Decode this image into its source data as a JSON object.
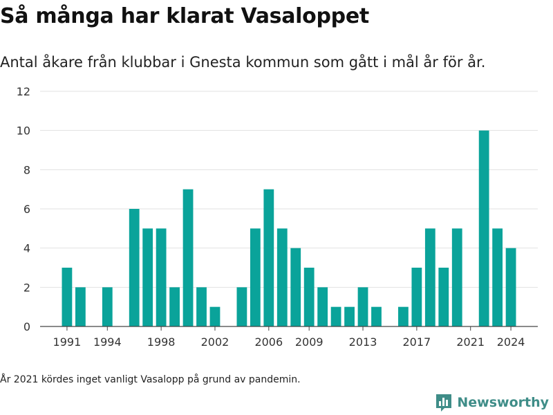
{
  "title": "Så många har klarat Vasaloppet",
  "subtitle": "Antal åkare från klubbar i Gnesta kommun som gått i mål år för år.",
  "footnote": "År 2021 kördes inget vanligt Vasalopp på grund av pandemin.",
  "brand": {
    "name": "Newsworthy",
    "icon": "bar-chart-logo-icon",
    "color": "#3f8d88"
  },
  "chart_data": {
    "type": "bar",
    "title": "",
    "xlabel": "",
    "ylabel": "",
    "ylim": [
      0,
      12
    ],
    "yticks": [
      0,
      2,
      4,
      6,
      8,
      10,
      12
    ],
    "xticks": [
      1991,
      1994,
      1998,
      2002,
      2006,
      2009,
      2013,
      2017,
      2021,
      2024
    ],
    "xlim": [
      1989,
      2026
    ],
    "grid": true,
    "bar_color": "#0aa39a",
    "categories": [
      1991,
      1992,
      1993,
      1994,
      1995,
      1996,
      1997,
      1998,
      1999,
      2000,
      2001,
      2002,
      2003,
      2004,
      2005,
      2006,
      2007,
      2008,
      2009,
      2010,
      2011,
      2012,
      2013,
      2014,
      2015,
      2016,
      2017,
      2018,
      2019,
      2020,
      2021,
      2022,
      2023,
      2024
    ],
    "values": [
      3,
      2,
      0,
      2,
      0,
      6,
      5,
      5,
      2,
      7,
      2,
      1,
      0,
      2,
      5,
      7,
      5,
      4,
      3,
      2,
      1,
      1,
      2,
      1,
      0,
      1,
      3,
      5,
      3,
      5,
      0,
      10,
      5,
      4
    ]
  }
}
